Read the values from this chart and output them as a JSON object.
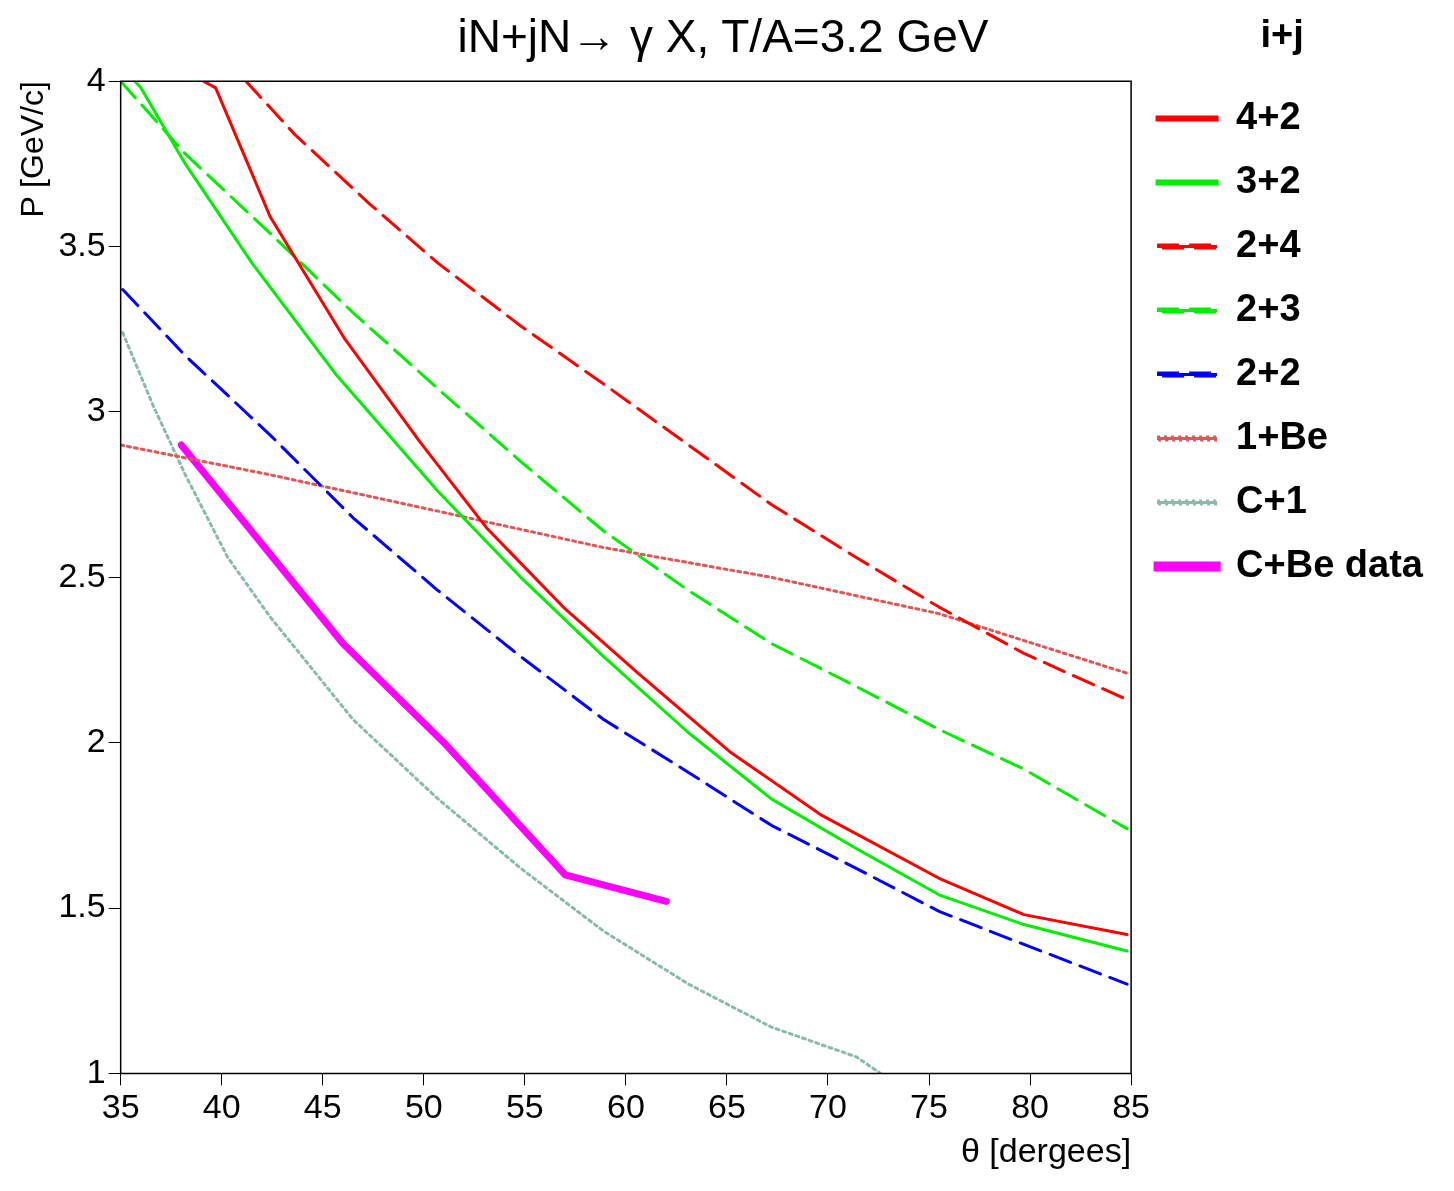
{
  "chart_data": {
    "type": "line",
    "title": "iN+jN→ γ X, T/A=3.2 GeV",
    "xlabel": "θ [dergees]",
    "ylabel": "P [GeV/c]",
    "legend_title": "i+j",
    "xlim": [
      35,
      85
    ],
    "ylim": [
      1,
      4
    ],
    "xticks": [
      35,
      40,
      45,
      50,
      55,
      60,
      65,
      70,
      75,
      80,
      85
    ],
    "yticks": [
      1,
      1.5,
      2,
      2.5,
      3,
      3.5,
      4
    ],
    "grid": false,
    "legend": "right",
    "marker": "none",
    "series": [
      {
        "name": "4+2",
        "color": "#ff0000",
        "line_style": "solid",
        "x": [
          39.1,
          39.7,
          42.4,
          46.1,
          49.8,
          53.1,
          56.9,
          60.6,
          65.2,
          69.7,
          75.5,
          79.7,
          84.8
        ],
        "values": [
          4,
          3.98,
          3.59,
          3.22,
          2.91,
          2.65,
          2.41,
          2.21,
          1.97,
          1.78,
          1.59,
          1.48,
          1.42
        ]
      },
      {
        "name": "3+2",
        "color": "#00ee00",
        "line_style": "solid",
        "x": [
          35.7,
          36,
          38.2,
          41.5,
          45.7,
          50.7,
          54.8,
          58.9,
          63.1,
          67.2,
          71.4,
          75.5,
          79.7,
          84.8
        ],
        "values": [
          4,
          3.98,
          3.75,
          3.45,
          3.11,
          2.76,
          2.5,
          2.26,
          2.03,
          1.83,
          1.68,
          1.54,
          1.45,
          1.37
        ]
      },
      {
        "name": "2+4",
        "color": "#ff0000",
        "line_style": "dashed",
        "x": [
          41.2,
          43.6,
          47.3,
          50.7,
          54.8,
          59,
          63.1,
          67.2,
          71.4,
          75.5,
          79.7,
          84.8
        ],
        "values": [
          4,
          3.84,
          3.63,
          3.45,
          3.26,
          3.08,
          2.9,
          2.72,
          2.56,
          2.41,
          2.27,
          2.13
        ]
      },
      {
        "name": "2+3",
        "color": "#00ee00",
        "line_style": "dashed",
        "x": [
          35,
          38.2,
          42.4,
          46.5,
          50.7,
          54.8,
          58.9,
          63.1,
          67.2,
          71.4,
          75.5,
          79.7,
          84.8
        ],
        "values": [
          4,
          3.78,
          3.54,
          3.3,
          3.07,
          2.85,
          2.64,
          2.46,
          2.3,
          2.17,
          2.04,
          1.92,
          1.74
        ]
      },
      {
        "name": "2+2",
        "color": "#0000ff",
        "line_style": "dashed",
        "x": [
          35.1,
          38.2,
          42.4,
          46.5,
          50.7,
          54.8,
          58.9,
          63.1,
          67.2,
          71.4,
          75.5,
          79.7,
          84.8
        ],
        "values": [
          3.37,
          3.17,
          2.93,
          2.68,
          2.46,
          2.26,
          2.07,
          1.91,
          1.75,
          1.62,
          1.49,
          1.39,
          1.27
        ]
      },
      {
        "name": "1+Be",
        "color": "#e05555",
        "line_style": "dotted",
        "x": [
          35,
          42.4,
          50.7,
          58.9,
          67.2,
          75.5,
          84.8
        ],
        "values": [
          2.9,
          2.81,
          2.7,
          2.59,
          2.5,
          2.39,
          2.21
        ]
      },
      {
        "name": "C+1",
        "color": "#88bbaa",
        "line_style": "dotted",
        "x": [
          35.1,
          36.6,
          38.2,
          40.3,
          42.4,
          46.5,
          50.7,
          54.8,
          58.9,
          63.1,
          67.2,
          71.4,
          72.6
        ],
        "values": [
          3.24,
          3.02,
          2.81,
          2.56,
          2.38,
          2.07,
          1.83,
          1.62,
          1.43,
          1.27,
          1.14,
          1.05,
          1
        ]
      },
      {
        "name": "C+Be data",
        "color": "#ff00ff",
        "line_style": "solid",
        "x": [
          38,
          42,
          46,
          51,
          57,
          62
        ],
        "values": [
          2.9,
          2.6,
          2.3,
          2,
          1.6,
          1.52
        ]
      }
    ]
  }
}
